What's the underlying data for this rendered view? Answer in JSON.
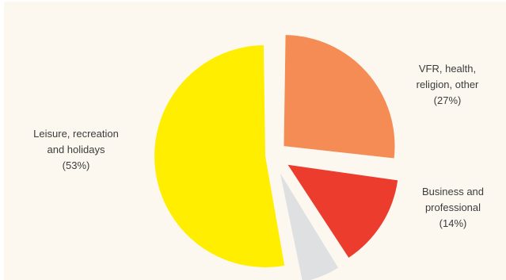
{
  "chart_data": {
    "type": "pie",
    "title": "",
    "slices": [
      {
        "label_lines": [
          "VFR, health,",
          "religion, other",
          "(27%)"
        ],
        "name": "VFR, health, religion, other",
        "value": 27,
        "color": "#f58c55"
      },
      {
        "label_lines": [
          "Business and",
          "professional",
          "(14%)"
        ],
        "name": "Business and professional",
        "value": 14,
        "color": "#eb3c2d"
      },
      {
        "label_lines": [],
        "name": "",
        "value": 6,
        "color": "#dfe0e2"
      },
      {
        "label_lines": [
          "Leisure, recreation",
          "and holidays",
          "(53%)"
        ],
        "name": "Leisure, recreation and holidays",
        "value": 53,
        "color": "#ffee00"
      }
    ],
    "legend": "none",
    "exploded": true
  }
}
